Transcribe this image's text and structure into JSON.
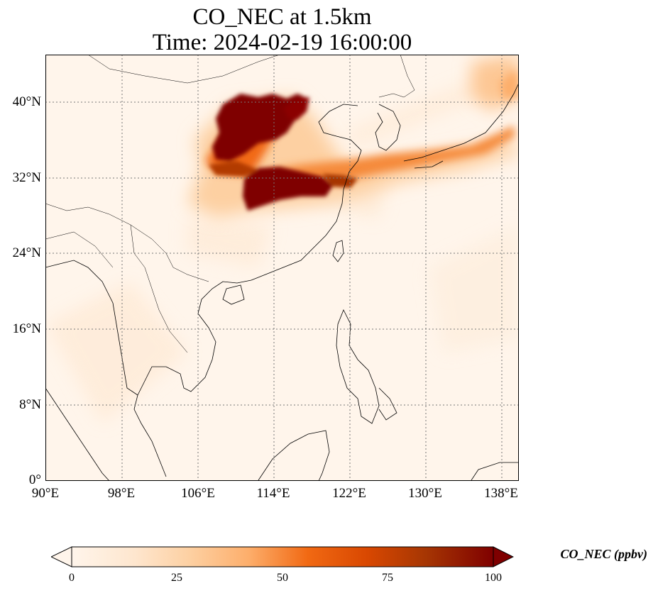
{
  "title": {
    "line1": "CO_NEC at 1.5km",
    "line2": "Time: 2024-02-19 16:00:00"
  },
  "map": {
    "lon_range": [
      90,
      139
    ],
    "lat_range": [
      0,
      45
    ],
    "lat_ticks": [
      "0°",
      "8°N",
      "16°N",
      "24°N",
      "32°N",
      "40°N"
    ],
    "lon_ticks": [
      "90°E",
      "98°E",
      "106°E",
      "114°E",
      "122°E",
      "130°E",
      "138°E"
    ],
    "gridlines": "dotted",
    "variable": "CO_NEC",
    "level": "1.5km"
  },
  "colorbar": {
    "label": "CO_NEC (ppbv)",
    "ticks": [
      "0",
      "25",
      "50",
      "75",
      "100"
    ],
    "range": [
      0,
      100
    ],
    "extend": "both",
    "colormap": "OrRd",
    "colors": [
      "#fff5eb",
      "#fee6ce",
      "#fdd0a2",
      "#fdae6b",
      "#f16913",
      "#d94801",
      "#a63603",
      "#7f0000"
    ]
  }
}
